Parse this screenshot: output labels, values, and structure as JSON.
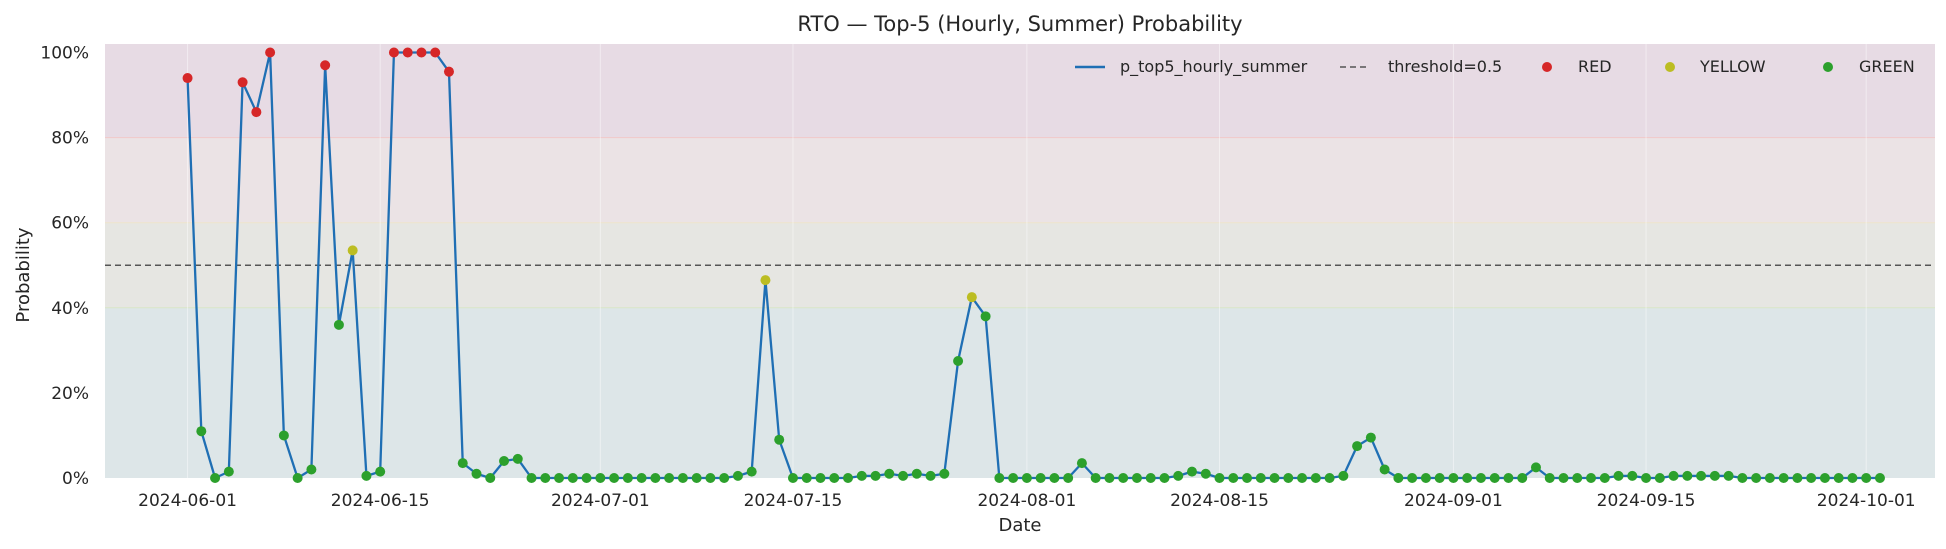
{
  "chart_data": {
    "type": "line",
    "title": "RTO — Top-5 (Hourly, Summer) Probability",
    "xlabel": "Date",
    "ylabel": "Probability",
    "x_range": [
      "2024-05-26",
      "2024-10-06"
    ],
    "ylim": [
      0,
      1.02
    ],
    "x_ticks": [
      "2024-06-01",
      "2024-06-15",
      "2024-07-01",
      "2024-07-15",
      "2024-08-01",
      "2024-08-15",
      "2024-09-01",
      "2024-09-15",
      "2024-10-01"
    ],
    "y_ticks": [
      0,
      0.2,
      0.4,
      0.6,
      0.8,
      1.0
    ],
    "y_tick_labels": [
      "0%",
      "20%",
      "40%",
      "60%",
      "80%",
      "100%"
    ],
    "grid": true,
    "legend_position": "top-right",
    "bands": [
      {
        "from": 0.0,
        "to": 0.4,
        "color": "#dde6e8"
      },
      {
        "from": 0.4,
        "to": 0.6,
        "color": "#e6e6e2"
      },
      {
        "from": 0.6,
        "to": 0.8,
        "color": "#ebe3e5"
      },
      {
        "from": 0.8,
        "to": 1.02,
        "color": "#e7dbe4"
      }
    ],
    "band_edge_colors": {
      "0.4": "#d8e6c8",
      "0.6": "#eee5cc",
      "0.8": "#f1c9c9"
    },
    "threshold": {
      "value": 0.5,
      "label": "threshold=0.5",
      "color": "#555555",
      "style": "dashed"
    },
    "series": [
      {
        "name": "p_top5_hourly_summer",
        "color": "#1f6fb4",
        "start_date": "2024-06-01",
        "values": [
          0.94,
          0.11,
          0.0,
          0.015,
          0.93,
          0.86,
          1.0,
          0.1,
          0.0,
          0.02,
          0.97,
          0.36,
          0.535,
          0.005,
          0.015,
          1.0,
          1.0,
          1.0,
          1.0,
          0.955,
          0.035,
          0.01,
          0.0,
          0.04,
          0.045,
          0.0,
          0.0,
          0.0,
          0.0,
          0.0,
          0.0,
          0.0,
          0.0,
          0.0,
          0.0,
          0.0,
          0.0,
          0.0,
          0.0,
          0.0,
          0.005,
          0.015,
          0.465,
          0.09,
          0.0,
          0.0,
          0.0,
          0.0,
          0.0,
          0.005,
          0.005,
          0.01,
          0.005,
          0.01,
          0.005,
          0.01,
          0.275,
          0.425,
          0.38,
          0.0,
          0.0,
          0.0,
          0.0,
          0.0,
          0.0,
          0.035,
          0.0,
          0.0,
          0.0,
          0.0,
          0.0,
          0.0,
          0.005,
          0.015,
          0.01,
          0.0,
          0.0,
          0.0,
          0.0,
          0.0,
          0.0,
          0.0,
          0.0,
          0.0,
          0.005,
          0.075,
          0.095,
          0.02,
          0.0,
          0.0,
          0.0,
          0.0,
          0.0,
          0.0,
          0.0,
          0.0,
          0.0,
          0.0,
          0.025,
          0.0,
          0.0,
          0.0,
          0.0,
          0.0,
          0.005,
          0.005,
          0.0,
          0.0,
          0.005,
          0.005,
          0.005,
          0.005,
          0.005,
          0.0,
          0.0,
          0.0,
          0.0,
          0.0,
          0.0,
          0.0,
          0.0,
          0.0,
          0.0,
          0.0
        ]
      }
    ],
    "point_categories": [
      {
        "name": "RED",
        "color": "#d62728",
        "min": 0.6
      },
      {
        "name": "YELLOW",
        "color": "#bcbd22",
        "min": 0.4
      },
      {
        "name": "GREEN",
        "color": "#2ca02c",
        "min": 0.0
      }
    ],
    "legend": [
      "p_top5_hourly_summer",
      "threshold=0.5",
      "RED",
      "YELLOW",
      "GREEN"
    ]
  }
}
